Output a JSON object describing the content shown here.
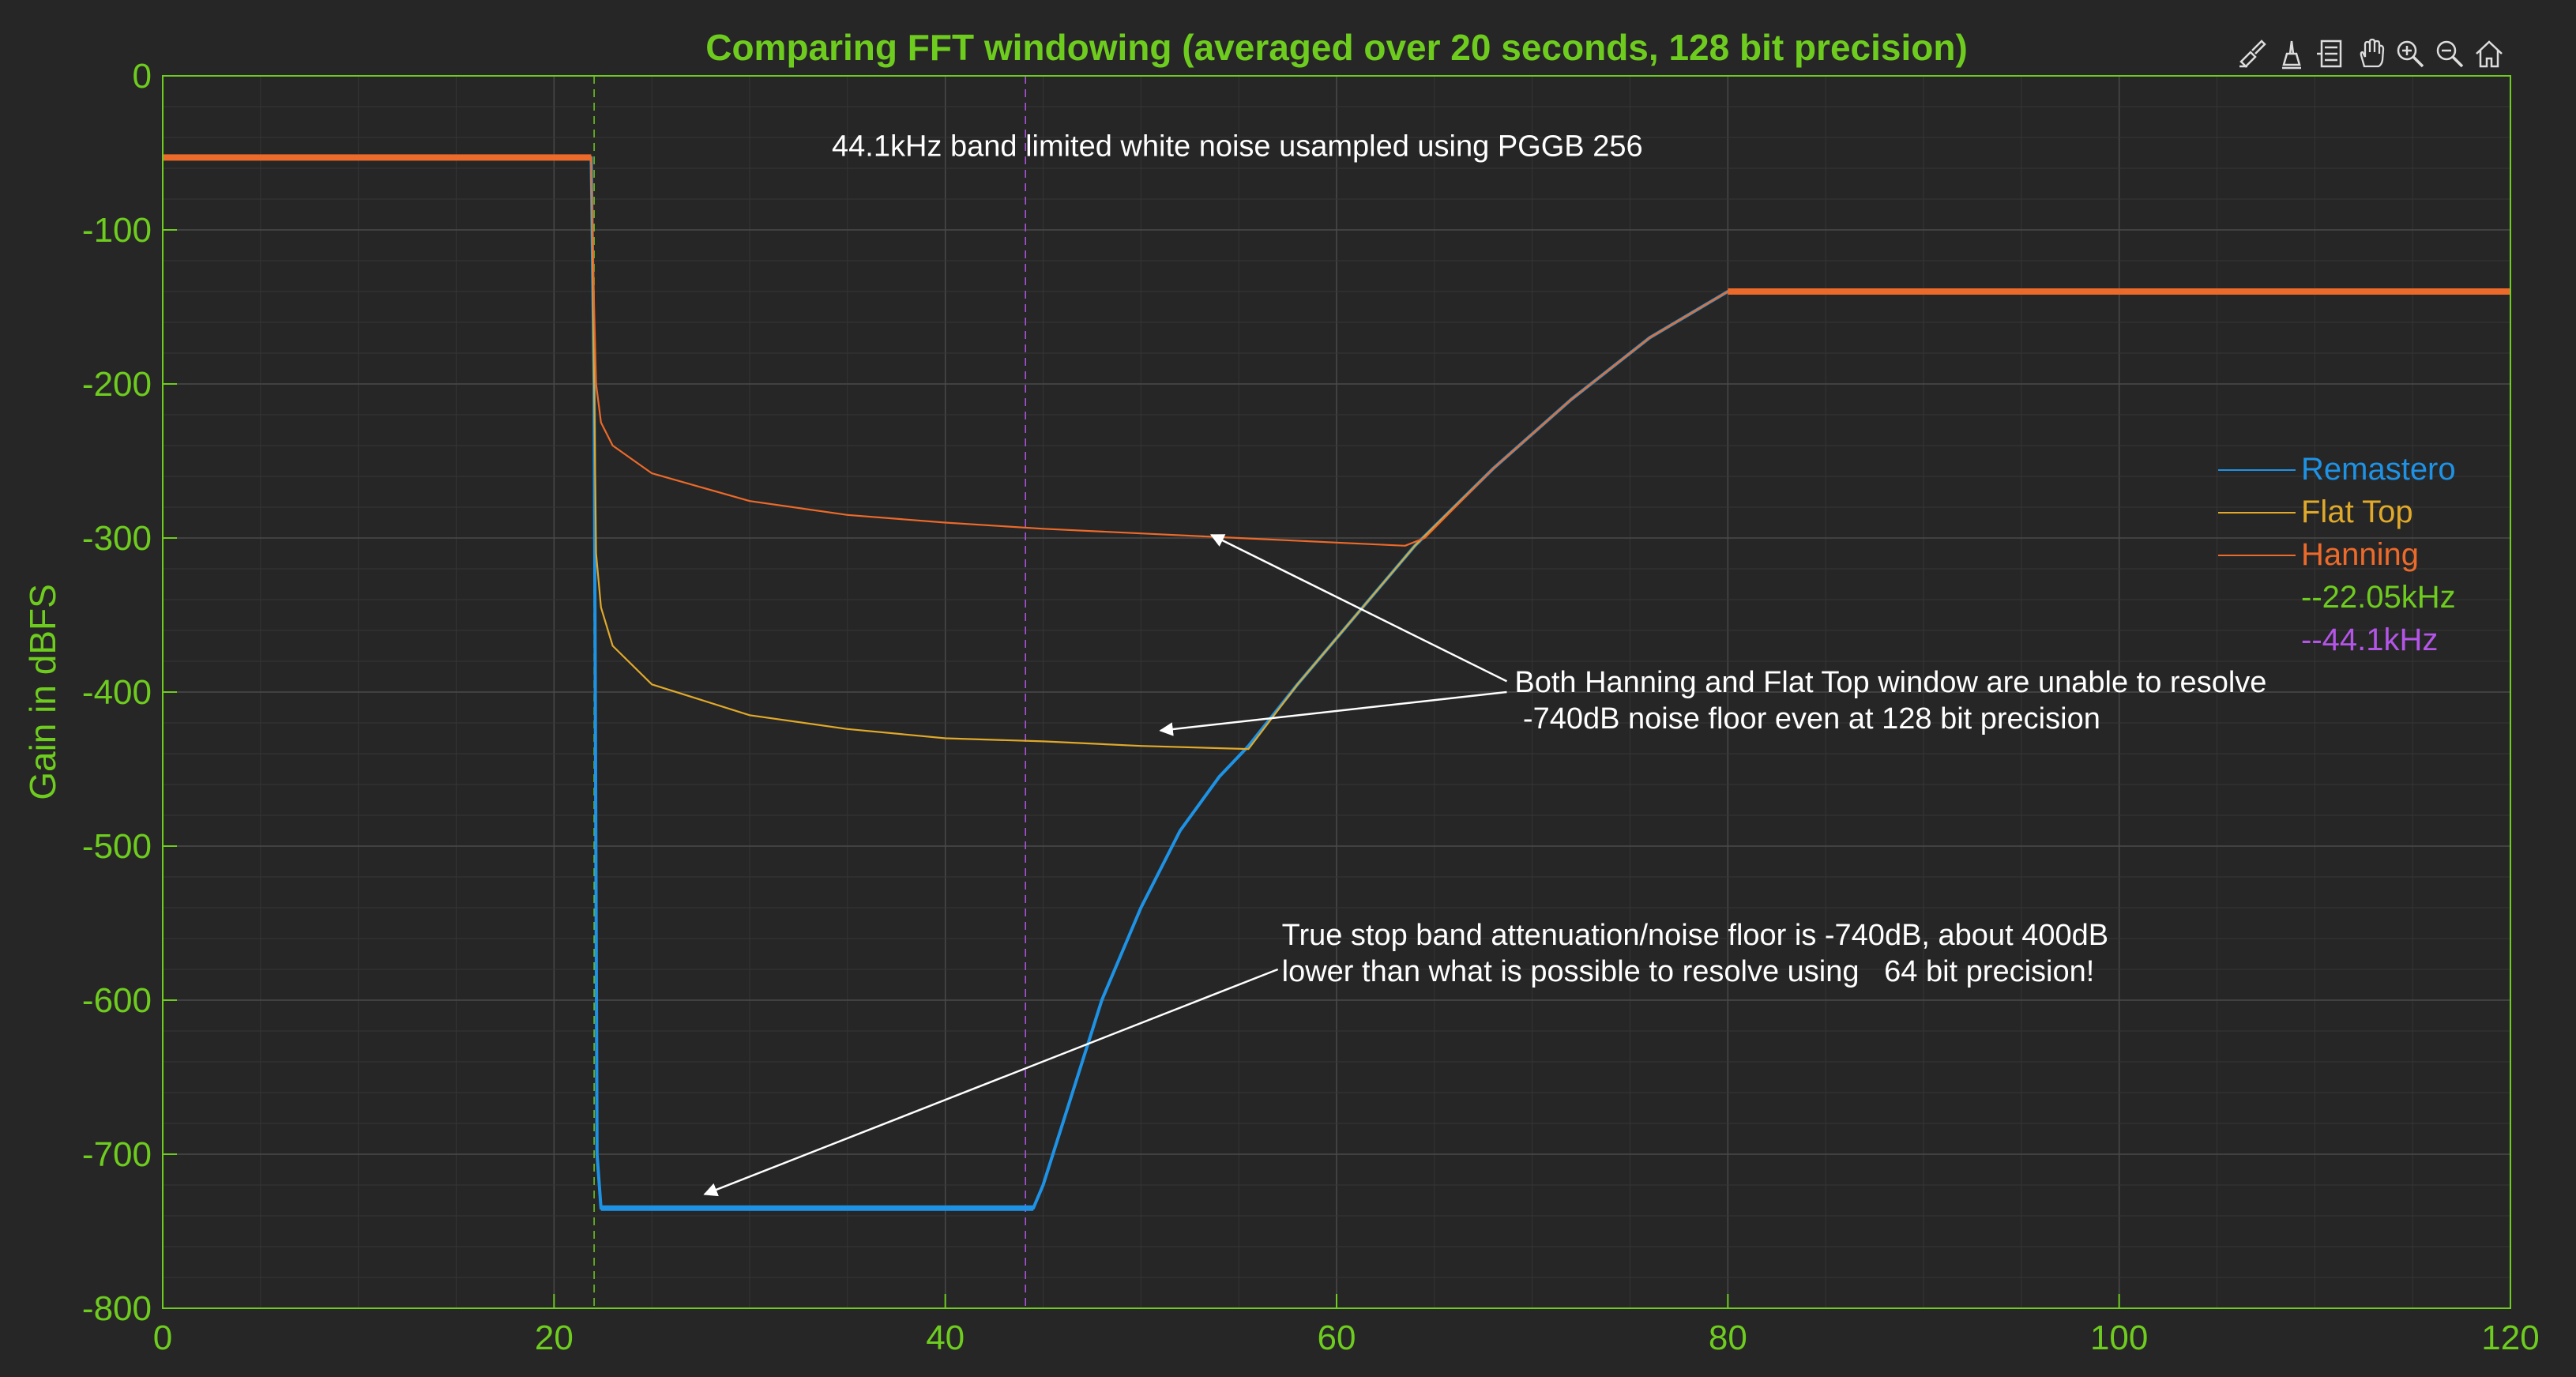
{
  "toolbar": {
    "icons": [
      "brush-data-icon",
      "data-tips-icon",
      "legend-toggle-icon",
      "pan-hand-icon",
      "zoom-in-icon",
      "zoom-out-icon",
      "restore-view-home-icon"
    ]
  },
  "colors": {
    "background": "#262626",
    "axis": "#6ecc1f",
    "title": "#6ecc1f",
    "remastero": "#1e93e6",
    "flattop": "#e0a92a",
    "hanning": "#ec6a2a",
    "marker_22": "#6ecc1f",
    "marker_44": "#b455e8",
    "annotation": "#ffffff"
  },
  "chart_data": {
    "type": "line",
    "title": "Comparing FFT windowing (averaged over 20 seconds, 128 bit precision)",
    "xlabel": "",
    "ylabel": "Gain in dBFS",
    "xlim": [
      0,
      120
    ],
    "ylim": [
      -800,
      0
    ],
    "xticks": [
      0,
      20,
      40,
      60,
      80,
      100,
      120
    ],
    "yticks": [
      0,
      -100,
      -200,
      -300,
      -400,
      -500,
      -600,
      -700,
      -800
    ],
    "grid": true,
    "legend_position": "right",
    "series": [
      {
        "name": "Remastero",
        "x": [
          0,
          21.9,
          22.05,
          22.2,
          22.4,
          30,
          40,
          44.5,
          45,
          46,
          48,
          50,
          52,
          54,
          55.5,
          58,
          61,
          64,
          68,
          72,
          76,
          80,
          100,
          120
        ],
        "y": [
          -53,
          -53,
          -200,
          -700,
          -735,
          -735,
          -735,
          -735,
          -720,
          -680,
          -600,
          -540,
          -490,
          -455,
          -435,
          -395,
          -350,
          -305,
          -255,
          -210,
          -170,
          -140,
          -140,
          -140
        ]
      },
      {
        "name": "Flat Top",
        "x": [
          0,
          21.9,
          22.05,
          22.15,
          22.4,
          23,
          25,
          30,
          35,
          40,
          45,
          50,
          55.5,
          58,
          61,
          64,
          68,
          72,
          76,
          80,
          100,
          120
        ],
        "y": [
          -53,
          -53,
          -200,
          -310,
          -345,
          -370,
          -395,
          -415,
          -424,
          -430,
          -432,
          -435,
          -437,
          -395,
          -350,
          -305,
          -255,
          -210,
          -170,
          -140,
          -140,
          -140
        ]
      },
      {
        "name": "Hanning",
        "x": [
          0,
          21.9,
          22.05,
          22.15,
          22.4,
          23,
          25,
          30,
          35,
          40,
          45,
          50,
          55,
          60,
          63.5,
          64.5,
          68,
          72,
          76,
          80,
          100,
          120
        ],
        "y": [
          -53,
          -53,
          -150,
          -200,
          -225,
          -240,
          -258,
          -276,
          -285,
          -290,
          -294,
          -297,
          -300,
          -303,
          -305,
          -300,
          -255,
          -210,
          -170,
          -140,
          -140,
          -140
        ]
      },
      {
        "name": "--22.05kHz",
        "x": [
          22.05,
          22.05
        ],
        "y": [
          0,
          -800
        ]
      },
      {
        "name": "--44.1kHz",
        "x": [
          44.1,
          44.1
        ],
        "y": [
          0,
          -800
        ]
      }
    ],
    "annotations": [
      {
        "text": [
          "44.1kHz band limited white noise usampled using PGGB 256"
        ],
        "x": 34.2,
        "y": -52,
        "arrows": []
      },
      {
        "text": [
          "Both Hanning and Flat Top window are unable to resolve",
          " -740dB noise floor even at 128 bit precision"
        ],
        "x": 69.1,
        "y": -400,
        "arrows": [
          {
            "from": [
              68.7,
              -393
            ],
            "to": [
              53.6,
              -298
            ]
          },
          {
            "from": [
              68.7,
              -400
            ],
            "to": [
              51.0,
              -425
            ]
          }
        ]
      },
      {
        "text": [
          "True stop band attenuation/noise floor is -740dB, about 400dB",
          "lower than what is possible to resolve using   64 bit precision!"
        ],
        "x": 57.2,
        "y": -564,
        "arrows": [
          {
            "from": [
              57.0,
              -580
            ],
            "to": [
              27.7,
              -726
            ]
          }
        ]
      }
    ]
  }
}
